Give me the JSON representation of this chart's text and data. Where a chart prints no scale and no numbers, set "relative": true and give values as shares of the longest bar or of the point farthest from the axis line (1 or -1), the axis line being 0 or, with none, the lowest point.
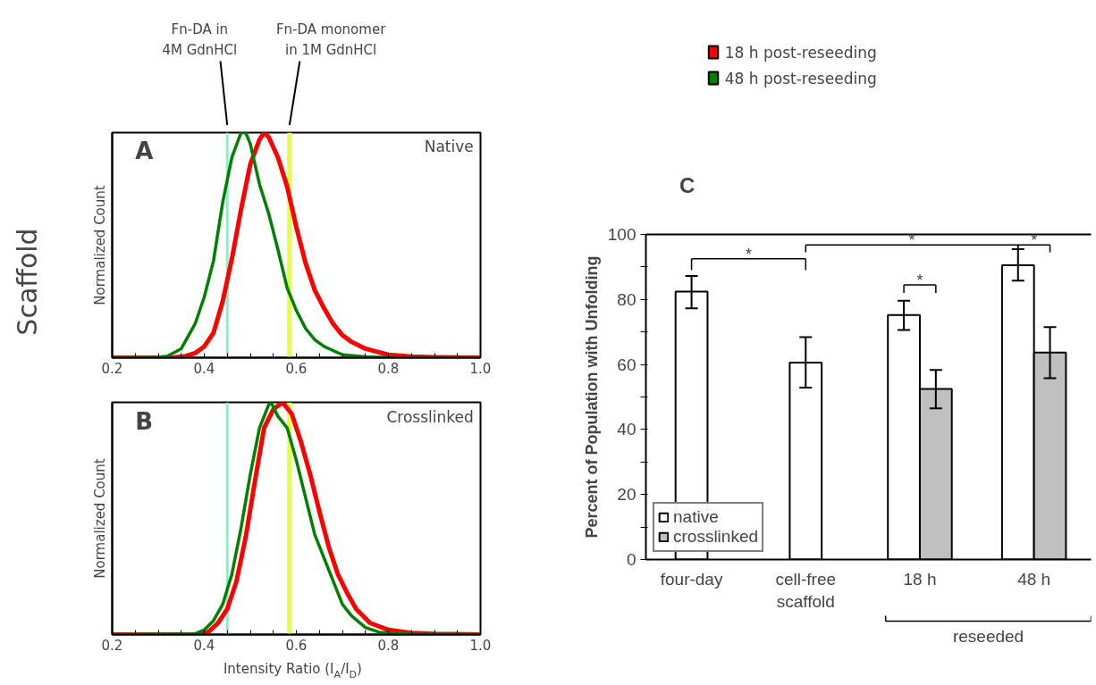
{
  "chart_data": [
    {
      "type": "line",
      "relative": true,
      "xlim": [
        0.2,
        1.0
      ],
      "xticks": [
        0.2,
        {
          "value": 0.25,
          "label": null
        },
        {
          "value": 0.3,
          "label": null
        },
        {
          "value": 0.35,
          "label": null
        },
        0.4,
        {
          "value": 0.45,
          "label": null
        },
        {
          "value": 0.5,
          "label": null
        },
        {
          "value": 0.55,
          "label": null
        },
        0.6,
        {
          "value": 0.65,
          "label": null
        },
        {
          "value": 0.7,
          "label": null
        },
        {
          "value": 0.75,
          "label": null
        },
        0.8,
        {
          "value": 0.85,
          "label": null
        },
        {
          "value": 0.9,
          "label": null
        },
        {
          "value": 0.95,
          "label": null
        },
        {
          "value": 1.0,
          "label": "1.0"
        }
      ],
      "ylabel": "Normalized Count",
      "legend": "right",
      "grid": false,
      "line_style": "solid",
      "marker": "none",
      "series": [
        {
          "name": "18 h post-reseeding",
          "color": "#ff0000",
          "x": [
            0.2,
            0.33,
            0.36,
            0.38,
            0.4,
            0.42,
            0.44,
            0.46,
            0.48,
            0.5,
            0.52,
            0.53,
            0.54,
            0.56,
            0.58,
            0.6,
            0.62,
            0.64,
            0.66,
            0.68,
            0.7,
            0.72,
            0.75,
            0.8,
            0.85,
            0.9,
            1.0
          ],
          "values": [
            0,
            0,
            0.007,
            0.02,
            0.05,
            0.11,
            0.25,
            0.44,
            0.66,
            0.86,
            0.97,
            1.0,
            0.98,
            0.89,
            0.76,
            0.58,
            0.42,
            0.3,
            0.22,
            0.15,
            0.1,
            0.07,
            0.04,
            0.013,
            0.005,
            0.002,
            0
          ]
        },
        {
          "name": "48 h post-reseeding",
          "color": "#008000",
          "x": [
            0.2,
            0.3,
            0.32,
            0.35,
            0.38,
            0.4,
            0.42,
            0.44,
            0.46,
            0.48,
            0.49,
            0.5,
            0.52,
            0.54,
            0.56,
            0.58,
            0.6,
            0.62,
            0.64,
            0.66,
            0.7,
            0.75,
            0.8,
            1.0
          ],
          "values": [
            0,
            0.002,
            0.007,
            0.04,
            0.15,
            0.27,
            0.43,
            0.69,
            0.89,
            1.0,
            1.0,
            0.95,
            0.77,
            0.64,
            0.48,
            0.31,
            0.21,
            0.13,
            0.08,
            0.05,
            0.013,
            0.004,
            0.001,
            0
          ]
        }
      ],
      "ref_lines": [
        {
          "axis": "x",
          "value": 0.45,
          "label": "Fn-DA in\n4M GdnHCl",
          "color": "#80f5c8"
        }
      ],
      "bands": [
        {
          "axis": "x",
          "from": 0.58,
          "to": 0.59,
          "label": "Fn-DA monomer\nin 1M GdnHCl",
          "color": "#e6ff45"
        }
      ],
      "annotations": [
        "A",
        "Native"
      ]
    },
    {
      "type": "line",
      "relative": true,
      "xlim": [
        0.2,
        1.0
      ],
      "xticks": [
        0.2,
        {
          "value": 0.25,
          "label": null
        },
        {
          "value": 0.3,
          "label": null
        },
        {
          "value": 0.35,
          "label": null
        },
        0.4,
        {
          "value": 0.45,
          "label": null
        },
        {
          "value": 0.5,
          "label": null
        },
        {
          "value": 0.55,
          "label": null
        },
        0.6,
        {
          "value": 0.65,
          "label": null
        },
        {
          "value": 0.7,
          "label": null
        },
        {
          "value": 0.75,
          "label": null
        },
        0.8,
        {
          "value": 0.85,
          "label": null
        },
        {
          "value": 0.9,
          "label": null
        },
        {
          "value": 0.95,
          "label": null
        },
        {
          "value": 1.0,
          "label": "1.0"
        }
      ],
      "xlabel": "Intensity Ratio (I$_{A}$/I$_{D}$)",
      "ylabel": "Normalized Count",
      "grid": false,
      "line_style": "solid",
      "marker": "none",
      "series": [
        {
          "color": "#ff0000",
          "x": [
            0.2,
            0.39,
            0.41,
            0.43,
            0.45,
            0.47,
            0.49,
            0.51,
            0.53,
            0.55,
            0.57,
            0.59,
            0.61,
            0.63,
            0.65,
            0.67,
            0.69,
            0.71,
            0.73,
            0.76,
            0.8,
            0.85,
            0.9,
            1.0
          ],
          "values": [
            0,
            0,
            0.013,
            0.05,
            0.11,
            0.23,
            0.42,
            0.66,
            0.89,
            0.97,
            1.0,
            0.95,
            0.83,
            0.69,
            0.53,
            0.38,
            0.26,
            0.18,
            0.11,
            0.05,
            0.02,
            0.007,
            0.003,
            0
          ]
        },
        {
          "color": "#008000",
          "x": [
            0.2,
            0.38,
            0.4,
            0.42,
            0.44,
            0.46,
            0.48,
            0.5,
            0.52,
            0.54,
            0.545,
            0.56,
            0.58,
            0.6,
            0.62,
            0.64,
            0.66,
            0.68,
            0.7,
            0.72,
            0.75,
            0.78,
            0.85,
            1.0
          ],
          "values": [
            0,
            0.003,
            0.02,
            0.06,
            0.13,
            0.26,
            0.46,
            0.69,
            0.89,
            0.99,
            1.0,
            0.94,
            0.89,
            0.75,
            0.59,
            0.43,
            0.33,
            0.23,
            0.13,
            0.08,
            0.03,
            0.01,
            0.002,
            0
          ]
        }
      ],
      "ref_lines": [
        {
          "axis": "x",
          "value": 0.45,
          "color": "#80f5c8"
        }
      ],
      "bands": [
        {
          "axis": "x",
          "from": 0.58,
          "to": 0.59,
          "color": "#e6ff45"
        }
      ],
      "annotations": [
        "B",
        "Crosslinked",
        "Scaffold"
      ]
    },
    {
      "type": "bar",
      "categories": [
        "four-day",
        "cell-free\nscaffold",
        "18 h",
        "48 h"
      ],
      "ylim": [
        0,
        100
      ],
      "yticks": [
        0,
        {
          "value": 10,
          "label": null
        },
        20,
        {
          "value": 30,
          "label": null
        },
        40,
        {
          "value": 50,
          "label": null
        },
        60,
        {
          "value": 70,
          "label": null
        },
        80,
        {
          "value": 90,
          "label": null
        },
        100
      ],
      "ylabel": "Percent of Population with Unfolding",
      "legend": "bottom left",
      "grid": false,
      "series": [
        {
          "name": "native",
          "color": "#ffffff",
          "values": [
            82.4,
            60.6,
            75.2,
            90.5
          ],
          "errors": [
            [
              77.3,
              87.2
            ],
            [
              52.9,
              68.4
            ],
            [
              70.6,
              79.6
            ],
            [
              85.8,
              95.5
            ]
          ]
        },
        {
          "name": "crosslinked",
          "color": "#c0c0c0",
          "values": [
            null,
            null,
            52.5,
            63.7
          ],
          "errors": [
            null,
            null,
            [
              46.5,
              58.3
            ],
            [
              55.8,
              71.5
            ]
          ]
        }
      ],
      "annotations": [
        "C",
        "*",
        "*",
        "*",
        "*",
        "reseeded"
      ]
    }
  ]
}
